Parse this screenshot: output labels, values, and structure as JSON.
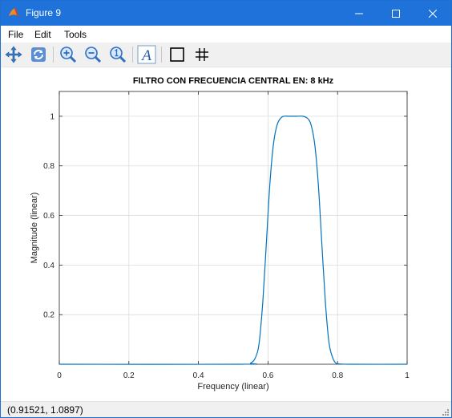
{
  "window": {
    "title": "Figure 9",
    "title_bar_color": "#1e72d9"
  },
  "menu": {
    "items": [
      "File",
      "Edit",
      "Tools"
    ]
  },
  "toolbar": {
    "buttons": [
      {
        "icon": "pan-icon"
      },
      {
        "icon": "rotate-icon"
      },
      {
        "icon": "zoom-in-icon"
      },
      {
        "icon": "zoom-out-icon"
      },
      {
        "icon": "zoom-reset-icon"
      },
      {
        "icon": "insert-text-icon"
      },
      {
        "icon": "toggle-axes-box-icon"
      },
      {
        "icon": "toggle-grid-icon"
      }
    ]
  },
  "status": {
    "coordinates": "(0.91521, 1.0897)"
  },
  "chart_data": {
    "type": "line",
    "title": "FILTRO CON FRECUENCIA CENTRAL EN:  8 kHz",
    "xlabel": "Frequency (linear)",
    "ylabel": "Magnitude (linear)",
    "xlim": [
      0,
      1
    ],
    "ylim": [
      0,
      1.1
    ],
    "xticks": [
      0,
      0.2,
      0.4,
      0.6,
      0.8,
      1
    ],
    "xtick_labels": [
      "0",
      "0.2",
      "0.4",
      "0.6",
      "0.8",
      "1"
    ],
    "yticks": [
      0.2,
      0.4,
      0.6,
      0.8,
      1
    ],
    "ytick_labels": [
      "0.2",
      "0.4",
      "0.6",
      "0.8",
      "1"
    ],
    "grid": true,
    "line_color": "#0072bd",
    "series": [
      {
        "x": [
          0,
          0.52,
          0.55,
          0.565,
          0.575,
          0.585,
          0.595,
          0.605,
          0.615,
          0.625,
          0.635,
          0.645,
          0.66,
          0.68,
          0.7,
          0.715,
          0.725,
          0.735,
          0.745,
          0.755,
          0.765,
          0.775,
          0.785,
          0.795,
          0.81,
          0.84,
          1
        ],
        "y": [
          0,
          0,
          0.005,
          0.03,
          0.09,
          0.25,
          0.48,
          0.72,
          0.88,
          0.96,
          0.99,
          1,
          1,
          1,
          1,
          0.99,
          0.96,
          0.88,
          0.72,
          0.48,
          0.25,
          0.09,
          0.03,
          0.005,
          0.001,
          0,
          0
        ]
      }
    ]
  }
}
